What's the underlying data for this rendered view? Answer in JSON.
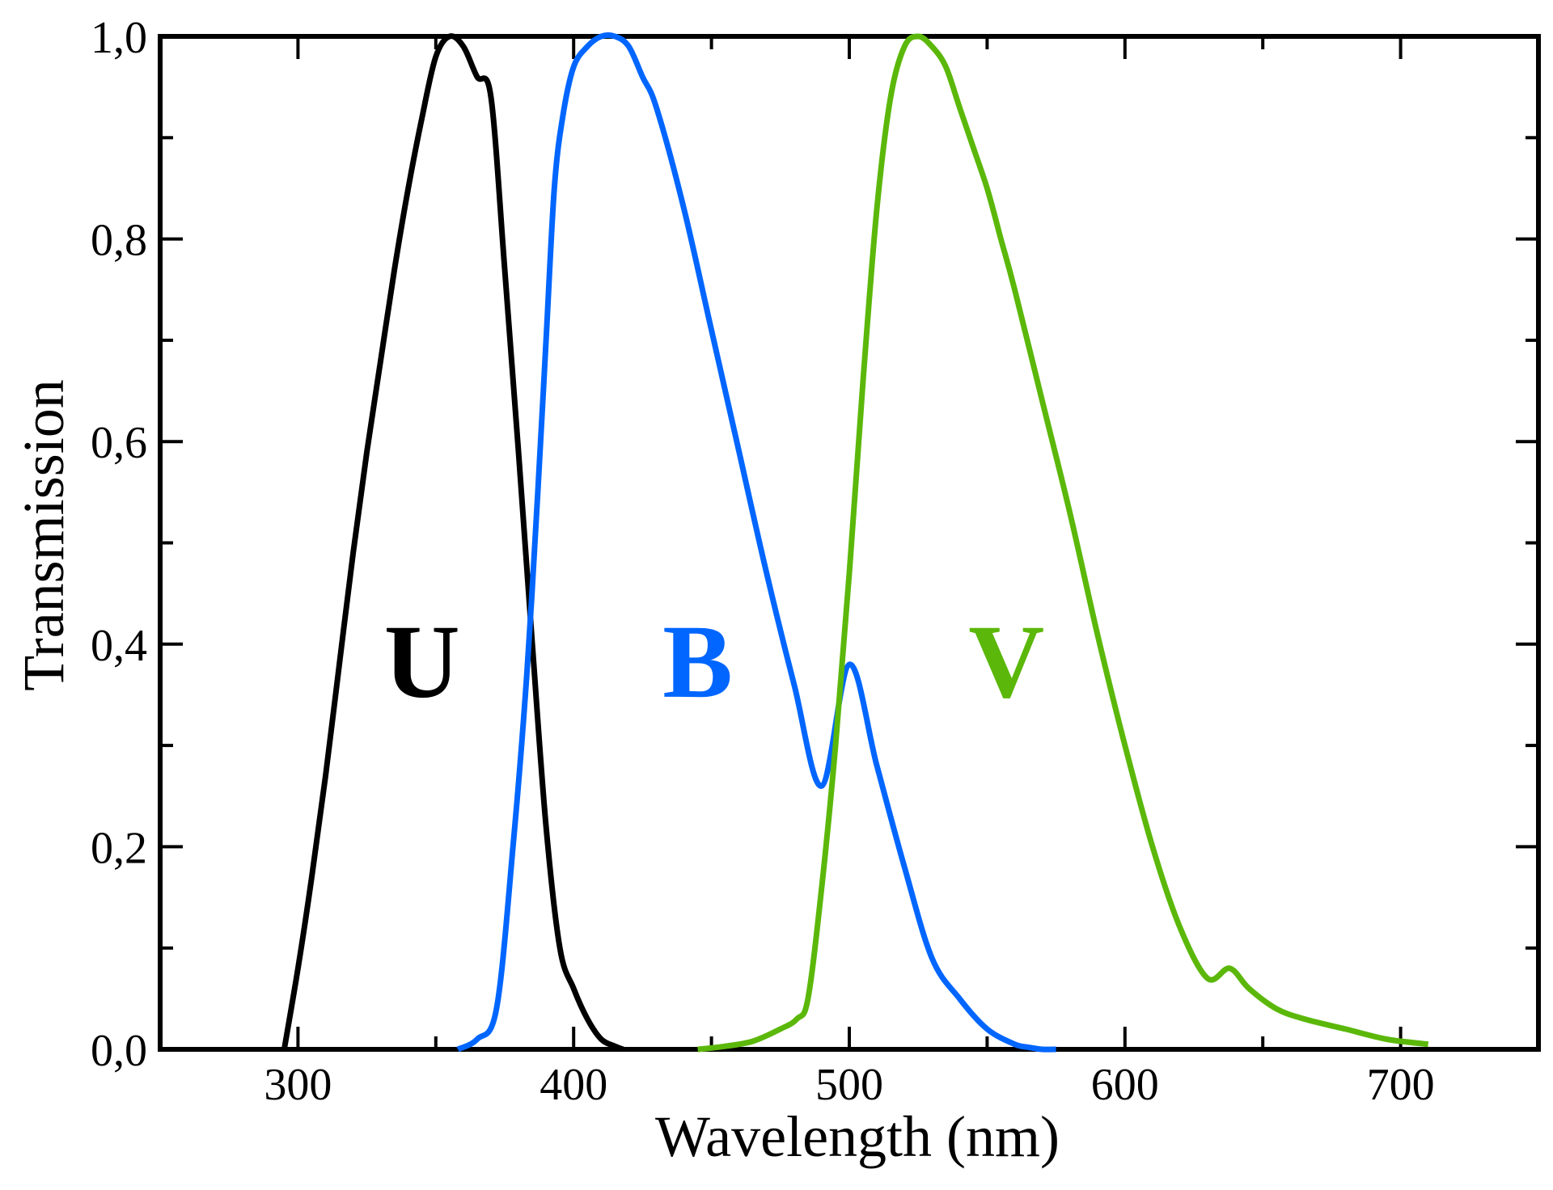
{
  "chart_data": {
    "type": "line",
    "title": "",
    "xlabel": "Wavelength (nm)",
    "ylabel": "Transmission",
    "xlim": [
      250,
      750
    ],
    "ylim": [
      0,
      1
    ],
    "grid": false,
    "x_ticks": [
      300,
      400,
      500,
      600,
      700
    ],
    "x_tick_labels": [
      "300",
      "400",
      "500",
      "600",
      "700"
    ],
    "y_ticks": [
      0,
      0.2,
      0.4,
      0.6,
      0.8,
      1.0
    ],
    "y_tick_labels": [
      "0,0",
      "0,2",
      "0,4",
      "0,6",
      "0,8",
      "1,0"
    ],
    "series": [
      {
        "name": "U",
        "color": "#000000",
        "label_position": [
          345,
          0.38
        ],
        "x": [
          295,
          300,
          305,
          310,
          315,
          320,
          325,
          330,
          335,
          340,
          345,
          350,
          355,
          360,
          365,
          370,
          375,
          380,
          385,
          390,
          395,
          400,
          405,
          410,
          415,
          418
        ],
        "y": [
          0.0,
          0.08,
          0.17,
          0.27,
          0.38,
          0.49,
          0.59,
          0.68,
          0.77,
          0.85,
          0.92,
          0.98,
          1.0,
          0.99,
          0.96,
          0.94,
          0.77,
          0.59,
          0.4,
          0.22,
          0.1,
          0.06,
          0.03,
          0.01,
          0.003,
          0.0
        ]
      },
      {
        "name": "B",
        "color": "#0066ff",
        "label_position": [
          445,
          0.38
        ],
        "x": [
          358,
          365,
          372,
          378,
          383,
          387,
          390,
          393,
          396,
          400,
          405,
          410,
          415,
          420,
          425,
          430,
          440,
          450,
          460,
          470,
          480,
          490,
          500,
          510,
          520,
          530,
          540,
          550,
          560,
          565,
          570,
          575
        ],
        "y": [
          0.0,
          0.01,
          0.04,
          0.2,
          0.37,
          0.55,
          0.7,
          0.85,
          0.92,
          0.97,
          0.99,
          1.0,
          1.0,
          0.99,
          0.96,
          0.93,
          0.83,
          0.71,
          0.59,
          0.47,
          0.36,
          0.26,
          0.38,
          0.28,
          0.18,
          0.09,
          0.05,
          0.02,
          0.005,
          0.002,
          0.0,
          0.0
        ]
      },
      {
        "name": "V",
        "color": "#5bb80a",
        "label_position": [
          557,
          0.38
        ],
        "x": [
          445,
          455,
          465,
          475,
          481,
          485,
          490,
          495,
          500,
          505,
          510,
          515,
          520,
          525,
          530,
          535,
          540,
          545,
          550,
          555,
          560,
          570,
          580,
          590,
          600,
          610,
          620,
          630,
          638,
          645,
          655,
          665,
          680,
          695,
          710
        ],
        "y": [
          0.0,
          0.003,
          0.008,
          0.02,
          0.03,
          0.05,
          0.16,
          0.3,
          0.47,
          0.66,
          0.83,
          0.94,
          0.99,
          1.0,
          0.99,
          0.97,
          0.93,
          0.89,
          0.85,
          0.8,
          0.75,
          0.64,
          0.53,
          0.41,
          0.3,
          0.2,
          0.12,
          0.07,
          0.08,
          0.06,
          0.04,
          0.03,
          0.02,
          0.01,
          0.005
        ]
      }
    ]
  }
}
